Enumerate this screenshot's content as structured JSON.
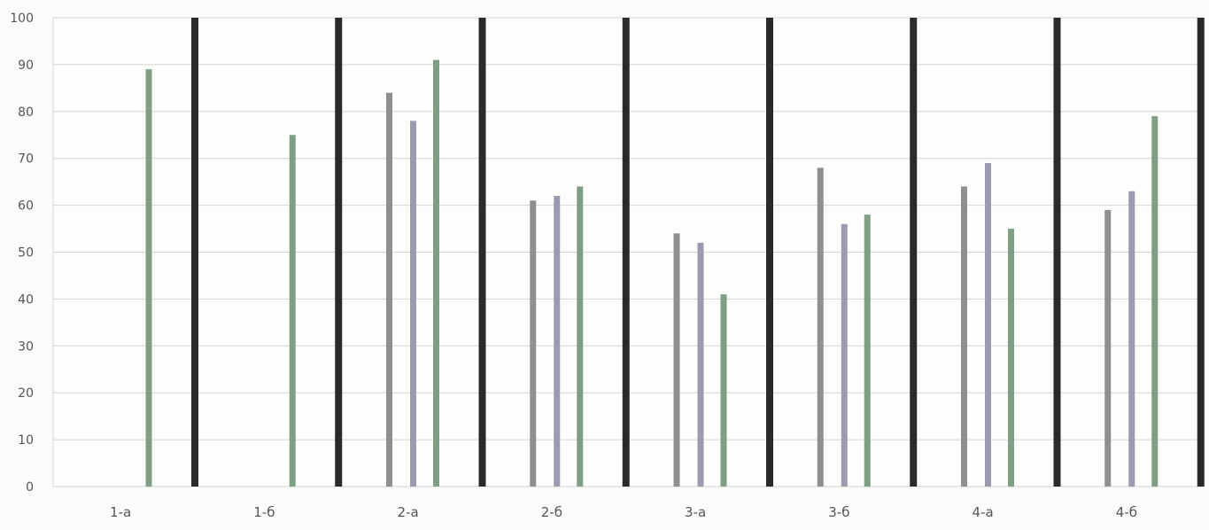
{
  "chart_data": {
    "type": "bar",
    "title": "",
    "xlabel": "",
    "ylabel": "",
    "ylim": [
      0,
      100
    ],
    "yticks": [
      0,
      10,
      20,
      30,
      40,
      50,
      60,
      70,
      80,
      90,
      100
    ],
    "grid": true,
    "legend": "none",
    "categories": [
      "1-а",
      "1-б",
      "2-а",
      "2-б",
      "3-а",
      "3-б",
      "4-а",
      "4-б"
    ],
    "series": [
      {
        "color": "#8f8f8f",
        "values": [
          null,
          null,
          84,
          61,
          54,
          68,
          64,
          59
        ]
      },
      {
        "color": "#9a9ab0",
        "values": [
          null,
          null,
          78,
          62,
          52,
          56,
          69,
          63
        ]
      },
      {
        "color": "#7f9f85",
        "values": [
          89,
          75,
          91,
          64,
          41,
          58,
          55,
          79
        ]
      },
      {
        "color": "#2a2a2a",
        "values": [
          100,
          100,
          100,
          100,
          100,
          100,
          100,
          100
        ]
      }
    ]
  }
}
